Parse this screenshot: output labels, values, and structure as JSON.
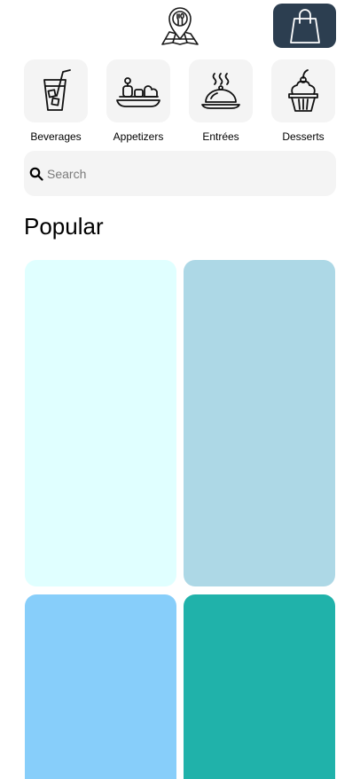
{
  "header": {
    "logo_icon": "restaurant-map-pin-icon",
    "cart_icon": "shopping-bag-icon",
    "cart_color": "#2c3e50"
  },
  "categories": [
    {
      "label": "Beverages",
      "icon": "drink-icon"
    },
    {
      "label": "Appetizers",
      "icon": "appetizer-platter-icon"
    },
    {
      "label": "Entrées",
      "icon": "cloche-dish-icon"
    },
    {
      "label": "Desserts",
      "icon": "cupcake-icon"
    }
  ],
  "search": {
    "placeholder": "Search",
    "value": ""
  },
  "popular": {
    "title": "Popular",
    "cards": [
      {
        "color": "#e0ffff"
      },
      {
        "color": "#add8e6"
      },
      {
        "color": "#87cefa"
      },
      {
        "color": "#20b2aa"
      }
    ]
  }
}
